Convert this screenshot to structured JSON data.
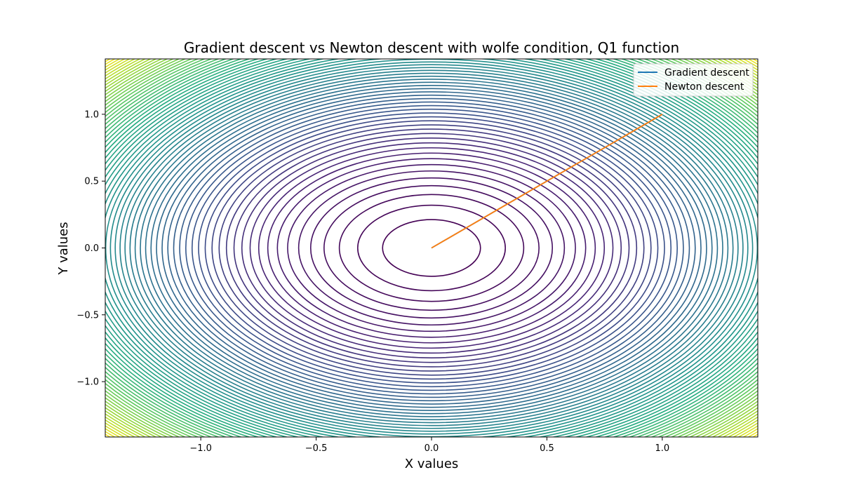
{
  "chart_data": {
    "type": "contour",
    "title": "Gradient descent vs Newton descent with wolfe condition, Q1 function",
    "xlabel": "X values",
    "ylabel": "Y values",
    "xlim": [
      -1.414,
      1.414
    ],
    "ylim": [
      -1.414,
      1.414
    ],
    "xticks": [
      -1.0,
      -0.5,
      0.0,
      0.5,
      1.0
    ],
    "xtick_labels": [
      "−1.0",
      "−0.5",
      "0.0",
      "0.5",
      "1.0"
    ],
    "yticks": [
      -1.0,
      -0.5,
      0.0,
      0.5,
      1.0
    ],
    "ytick_labels": [
      "−1.0",
      "−0.5",
      "0.0",
      "0.5",
      "1.0"
    ],
    "grid": false,
    "colormap": "viridis",
    "contour": {
      "function": "x^2 + y^2",
      "levels": 70,
      "level_min": 0.045,
      "level_max": 4.0
    },
    "legend_position": "top-right",
    "series": [
      {
        "name": "Gradient descent",
        "color": "#1f77b4",
        "x": [
          1.0,
          0.5,
          0.0
        ],
        "y": [
          1.0,
          0.5,
          0.0
        ]
      },
      {
        "name": "Newton descent",
        "color": "#ff7f0e",
        "x": [
          1.0,
          0.0
        ],
        "y": [
          1.0,
          0.0
        ]
      }
    ]
  }
}
